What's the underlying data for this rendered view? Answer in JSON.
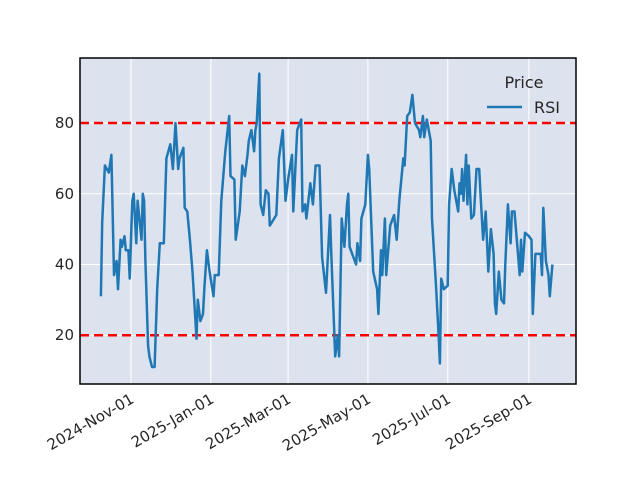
{
  "chart_data": {
    "type": "line",
    "title": "",
    "xlabel": "",
    "ylabel": "",
    "xlim": [
      "2024-09-23",
      "2025-10-07"
    ],
    "ylim": [
      6.2,
      98.4
    ],
    "grid": true,
    "background_color": "#dde3ee",
    "x_ticks": [
      "2024-Nov-01",
      "2025-Jan-01",
      "2025-Mar-01",
      "2025-May-01",
      "2025-Jul-01",
      "2025-Sep-01"
    ],
    "x_tick_dates": [
      "2024-11-01",
      "2025-01-01",
      "2025-03-01",
      "2025-05-01",
      "2025-07-01",
      "2025-09-01"
    ],
    "y_ticks": [
      20,
      40,
      60,
      80
    ],
    "legend": {
      "title": "Price",
      "placement": "top-right",
      "entries": [
        "RSI"
      ]
    },
    "reference_lines": [
      {
        "y": 80,
        "color": "#ff0000",
        "style": "dashed"
      },
      {
        "y": 20,
        "color": "#ff0000",
        "style": "dashed"
      }
    ],
    "series": [
      {
        "name": "RSI",
        "color": "#1f77b4",
        "points": [
          [
            "2024-10-09",
            31
          ],
          [
            "2024-10-10",
            52
          ],
          [
            "2024-10-12",
            68
          ],
          [
            "2024-10-15",
            66
          ],
          [
            "2024-10-17",
            71
          ],
          [
            "2024-10-19",
            37
          ],
          [
            "2024-10-21",
            41
          ],
          [
            "2024-10-22",
            33
          ],
          [
            "2024-10-24",
            47
          ],
          [
            "2024-10-25",
            45
          ],
          [
            "2024-10-27",
            48
          ],
          [
            "2024-10-28",
            44
          ],
          [
            "2024-10-30",
            44
          ],
          [
            "2024-10-31",
            36
          ],
          [
            "2024-11-02",
            58
          ],
          [
            "2024-11-03",
            60
          ],
          [
            "2024-11-05",
            46
          ],
          [
            "2024-11-06",
            58
          ],
          [
            "2024-11-09",
            47
          ],
          [
            "2024-11-10",
            60
          ],
          [
            "2024-11-11",
            58
          ],
          [
            "2024-11-12",
            41
          ],
          [
            "2024-11-14",
            17
          ],
          [
            "2024-11-15",
            14
          ],
          [
            "2024-11-17",
            11
          ],
          [
            "2024-11-19",
            11
          ],
          [
            "2024-11-21",
            33
          ],
          [
            "2024-11-23",
            46
          ],
          [
            "2024-11-26",
            46
          ],
          [
            "2024-11-28",
            70
          ],
          [
            "2024-12-01",
            74
          ],
          [
            "2024-12-03",
            67
          ],
          [
            "2024-12-05",
            80
          ],
          [
            "2024-12-07",
            67
          ],
          [
            "2024-12-08",
            70
          ],
          [
            "2024-12-11",
            73
          ],
          [
            "2024-12-12",
            56
          ],
          [
            "2024-12-14",
            55
          ],
          [
            "2024-12-16",
            47
          ],
          [
            "2024-12-18",
            38
          ],
          [
            "2024-12-21",
            19
          ],
          [
            "2024-12-22",
            30
          ],
          [
            "2024-12-24",
            24
          ],
          [
            "2024-12-26",
            26
          ],
          [
            "2024-12-27",
            33
          ],
          [
            "2024-12-29",
            44
          ],
          [
            "2024-12-31",
            38
          ],
          [
            "2025-01-03",
            31
          ],
          [
            "2025-01-04",
            37
          ],
          [
            "2025-01-07",
            37
          ],
          [
            "2025-01-09",
            58
          ],
          [
            "2025-01-12",
            72
          ],
          [
            "2025-01-15",
            82
          ],
          [
            "2025-01-16",
            65
          ],
          [
            "2025-01-19",
            64
          ],
          [
            "2025-01-20",
            47
          ],
          [
            "2025-01-23",
            55
          ],
          [
            "2025-01-25",
            68
          ],
          [
            "2025-01-27",
            65
          ],
          [
            "2025-01-29",
            71
          ],
          [
            "2025-01-30",
            75
          ],
          [
            "2025-02-01",
            78
          ],
          [
            "2025-02-03",
            72
          ],
          [
            "2025-02-04",
            78
          ],
          [
            "2025-02-05",
            80
          ],
          [
            "2025-02-07",
            94
          ],
          [
            "2025-02-08",
            57
          ],
          [
            "2025-02-10",
            54
          ],
          [
            "2025-02-12",
            61
          ],
          [
            "2025-02-14",
            60
          ],
          [
            "2025-02-15",
            51
          ],
          [
            "2025-02-20",
            54
          ],
          [
            "2025-02-22",
            70
          ],
          [
            "2025-02-25",
            78
          ],
          [
            "2025-02-27",
            58
          ],
          [
            "2025-03-01",
            64
          ],
          [
            "2025-03-04",
            71
          ],
          [
            "2025-03-05",
            55
          ],
          [
            "2025-03-08",
            78
          ],
          [
            "2025-03-11",
            81
          ],
          [
            "2025-03-12",
            55
          ],
          [
            "2025-03-14",
            57
          ],
          [
            "2025-03-15",
            53
          ],
          [
            "2025-03-18",
            63
          ],
          [
            "2025-03-20",
            57
          ],
          [
            "2025-03-22",
            68
          ],
          [
            "2025-03-25",
            68
          ],
          [
            "2025-03-27",
            42
          ],
          [
            "2025-03-30",
            32
          ],
          [
            "2025-04-02",
            54
          ],
          [
            "2025-04-03",
            43
          ],
          [
            "2025-04-06",
            14
          ],
          [
            "2025-04-08",
            20
          ],
          [
            "2025-04-09",
            14
          ],
          [
            "2025-04-11",
            53
          ],
          [
            "2025-04-13",
            45
          ],
          [
            "2025-04-15",
            57
          ],
          [
            "2025-04-16",
            60
          ],
          [
            "2025-04-17",
            45
          ],
          [
            "2025-04-22",
            40
          ],
          [
            "2025-04-23",
            46
          ],
          [
            "2025-04-25",
            41
          ],
          [
            "2025-04-26",
            53
          ],
          [
            "2025-04-29",
            57
          ],
          [
            "2025-05-01",
            71
          ],
          [
            "2025-05-02",
            67
          ],
          [
            "2025-05-05",
            38
          ],
          [
            "2025-05-08",
            33
          ],
          [
            "2025-05-09",
            26
          ],
          [
            "2025-05-11",
            44
          ],
          [
            "2025-05-12",
            37
          ],
          [
            "2025-05-14",
            53
          ],
          [
            "2025-05-15",
            37
          ],
          [
            "2025-05-18",
            51
          ],
          [
            "2025-05-21",
            54
          ],
          [
            "2025-05-23",
            47
          ],
          [
            "2025-05-25",
            58
          ],
          [
            "2025-05-28",
            70
          ],
          [
            "2025-05-29",
            68
          ],
          [
            "2025-05-31",
            82
          ],
          [
            "2025-06-02",
            83
          ],
          [
            "2025-06-04",
            88
          ],
          [
            "2025-06-06",
            80
          ],
          [
            "2025-06-09",
            78
          ],
          [
            "2025-06-10",
            76
          ],
          [
            "2025-06-12",
            82
          ],
          [
            "2025-06-13",
            76
          ],
          [
            "2025-06-15",
            81
          ],
          [
            "2025-06-18",
            75
          ],
          [
            "2025-06-19",
            53
          ],
          [
            "2025-06-22",
            34
          ],
          [
            "2025-06-24",
            20
          ],
          [
            "2025-06-25",
            12
          ],
          [
            "2025-06-26",
            36
          ],
          [
            "2025-06-28",
            33
          ],
          [
            "2025-07-01",
            34
          ],
          [
            "2025-07-02",
            57
          ],
          [
            "2025-07-04",
            67
          ],
          [
            "2025-07-06",
            61
          ],
          [
            "2025-07-09",
            55
          ],
          [
            "2025-07-10",
            63
          ],
          [
            "2025-07-11",
            60
          ],
          [
            "2025-07-12",
            67
          ],
          [
            "2025-07-13",
            58
          ],
          [
            "2025-07-15",
            71
          ],
          [
            "2025-07-16",
            57
          ],
          [
            "2025-07-17",
            68
          ],
          [
            "2025-07-19",
            53
          ],
          [
            "2025-07-21",
            54
          ],
          [
            "2025-07-23",
            67
          ],
          [
            "2025-07-25",
            67
          ],
          [
            "2025-07-26",
            60
          ],
          [
            "2025-07-28",
            47
          ],
          [
            "2025-07-30",
            55
          ],
          [
            "2025-08-01",
            38
          ],
          [
            "2025-08-03",
            50
          ],
          [
            "2025-08-05",
            43
          ],
          [
            "2025-08-06",
            29
          ],
          [
            "2025-08-07",
            26
          ],
          [
            "2025-08-09",
            38
          ],
          [
            "2025-08-11",
            30
          ],
          [
            "2025-08-13",
            29
          ],
          [
            "2025-08-14",
            40
          ],
          [
            "2025-08-16",
            57
          ],
          [
            "2025-08-18",
            46
          ],
          [
            "2025-08-19",
            55
          ],
          [
            "2025-08-21",
            55
          ],
          [
            "2025-08-23",
            46
          ],
          [
            "2025-08-25",
            37
          ],
          [
            "2025-08-26",
            47
          ],
          [
            "2025-08-27",
            38
          ],
          [
            "2025-08-29",
            49
          ],
          [
            "2025-09-01",
            48
          ],
          [
            "2025-09-03",
            47
          ],
          [
            "2025-09-04",
            26
          ],
          [
            "2025-09-06",
            43
          ],
          [
            "2025-09-10",
            43
          ],
          [
            "2025-09-11",
            37
          ],
          [
            "2025-09-12",
            56
          ],
          [
            "2025-09-14",
            41
          ],
          [
            "2025-09-16",
            37
          ],
          [
            "2025-09-17",
            31
          ],
          [
            "2025-09-19",
            40
          ]
        ]
      }
    ]
  }
}
